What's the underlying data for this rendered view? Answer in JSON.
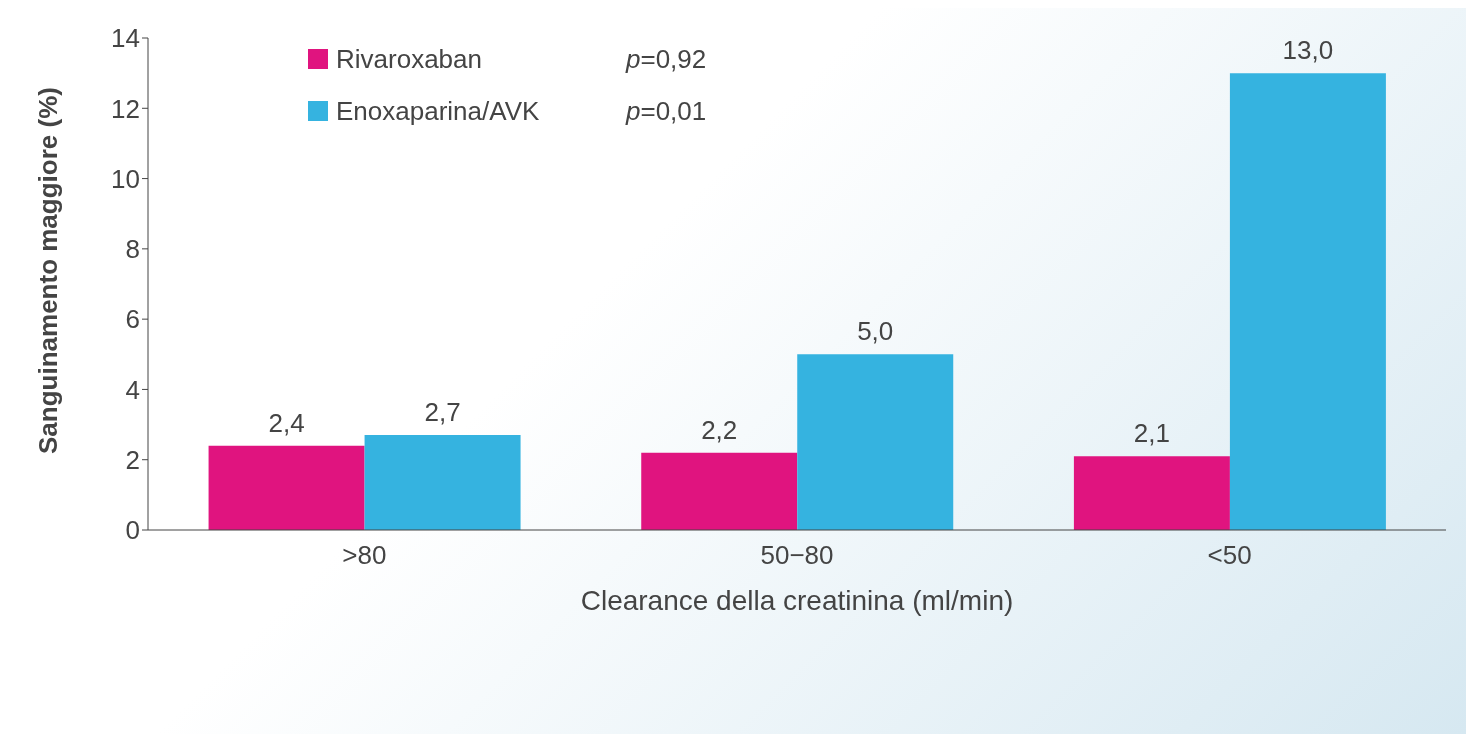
{
  "chart_data": {
    "type": "bar",
    "xlabel": "Clearance della creatinina (ml/min)",
    "ylabel": "Sanguinamento maggiore (%)",
    "categories": [
      ">80",
      "50−80",
      "<50"
    ],
    "series": [
      {
        "name": "Rivaroxaban",
        "color": "#e0147f",
        "values": [
          2.4,
          2.2,
          2.1
        ],
        "value_labels": [
          "2,4",
          "2,2",
          "2,1"
        ]
      },
      {
        "name": "Enoxaparina/AVK",
        "color": "#35b3e0",
        "values": [
          2.7,
          5.0,
          13.0
        ],
        "value_labels": [
          "2,7",
          "5,0",
          "13,0"
        ]
      }
    ],
    "annotations": [
      "p=0,92",
      "p=0,01"
    ],
    "ylim": [
      0,
      14
    ],
    "yticks": [
      0,
      2,
      4,
      6,
      8,
      10,
      12,
      14
    ],
    "legend": "top left"
  }
}
